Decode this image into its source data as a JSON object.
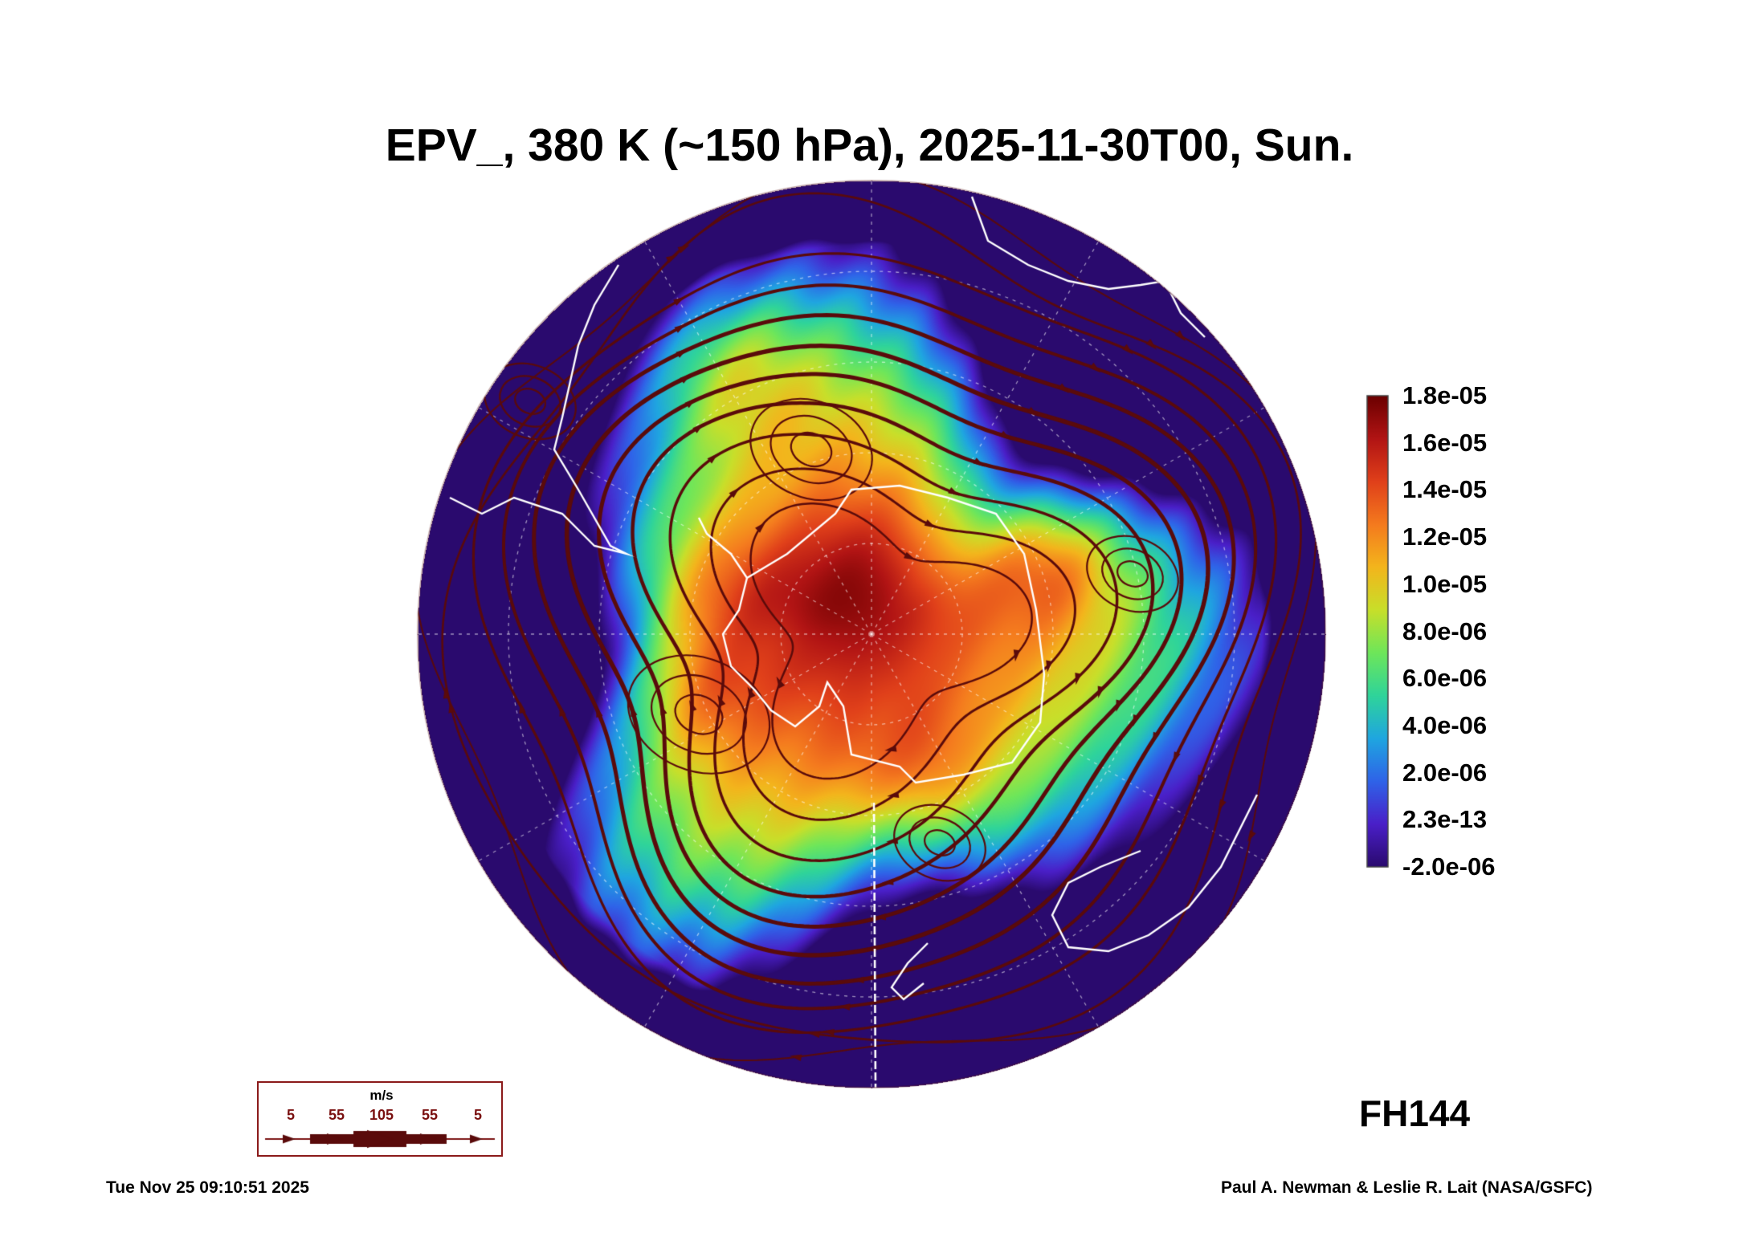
{
  "title": "EPV_, 380 K (~150 hPa), 2025-11-30T00, Sun.",
  "forecast_hour": "FH144",
  "timestamp": "Tue Nov 25 09:10:51 2025",
  "credit": "Paul A. Newman & Leslie R. Lait (NASA/GSFC)",
  "colorbar": {
    "labels": [
      "1.8e-05",
      "1.6e-05",
      "1.4e-05",
      "1.2e-05",
      "1.0e-05",
      "8.0e-06",
      "6.0e-06",
      "4.0e-06",
      "2.0e-06",
      "2.3e-13",
      "-2.0e-06"
    ],
    "colors": [
      "#6b0000",
      "#b11414",
      "#e0401a",
      "#f47a1e",
      "#f3b51c",
      "#c8df2a",
      "#6ee65a",
      "#2fd49a",
      "#1fa6e0",
      "#2f63e8",
      "#4a1fc8",
      "#2a0a6e"
    ]
  },
  "wind_key": {
    "unit": "m/s",
    "speeds": [
      "5",
      "55",
      "105",
      "55",
      "5"
    ]
  },
  "colors": {
    "streamline": "#5a0b0b",
    "coastline": "#ffffff",
    "background": "#ffffff"
  }
}
